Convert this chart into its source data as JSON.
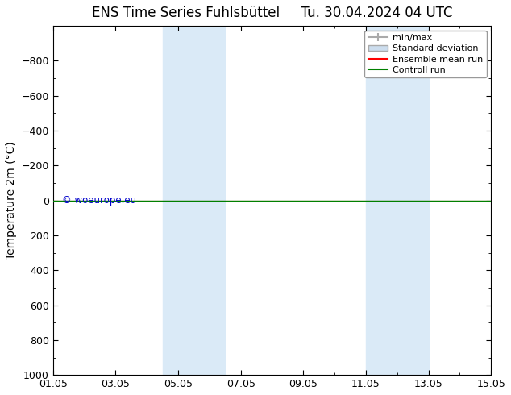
{
  "title_left": "ENS Time Series Fuhlsbüttel",
  "title_right": "Tu. 30.04.2024 04 UTC",
  "ylabel": "Temperature 2m (°C)",
  "ylim_bottom": -1000,
  "ylim_top": 1000,
  "yticks": [
    -800,
    -600,
    -400,
    -200,
    0,
    200,
    400,
    600,
    800,
    1000
  ],
  "xlim": [
    0,
    14
  ],
  "xtick_labels": [
    "01.05",
    "03.05",
    "05.05",
    "07.05",
    "09.05",
    "11.05",
    "13.05",
    "15.05"
  ],
  "xtick_positions": [
    0,
    2,
    4,
    6,
    8,
    10,
    12,
    14
  ],
  "shaded_bands": [
    {
      "x_start": 3.5,
      "x_end": 5.5
    },
    {
      "x_start": 10.0,
      "x_end": 12.0
    }
  ],
  "shaded_color": "#daeaf7",
  "control_run_value": 0,
  "control_run_color": "#008000",
  "ensemble_mean_color": "#ff0000",
  "background_color": "#ffffff",
  "watermark": "© woeurope.eu",
  "watermark_color": "#0000cc",
  "legend_labels": [
    "min/max",
    "Standard deviation",
    "Ensemble mean run",
    "Controll run"
  ],
  "legend_line_color": "#aaaaaa",
  "legend_patch_color": "#ccddee",
  "legend_ensemble_color": "#ff0000",
  "legend_control_color": "#008000",
  "title_fontsize": 12,
  "axis_label_fontsize": 10,
  "tick_fontsize": 9,
  "legend_fontsize": 8
}
